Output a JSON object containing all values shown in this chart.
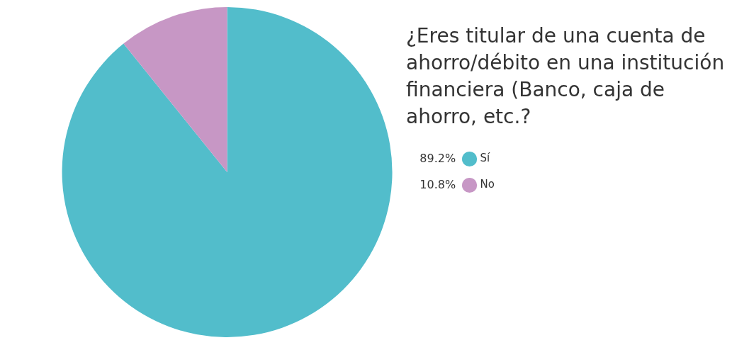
{
  "chart_data": {
    "type": "pie",
    "title": "¿Eres titular de una cuenta de ahorro/débito en una institución financiera (Banco, caja de ahorro, etc.?",
    "categories": [
      "Sí",
      "No"
    ],
    "values": [
      89.2,
      10.8
    ],
    "colors": [
      "#52bdcb",
      "#c797c5"
    ],
    "value_labels": [
      "89.2%",
      "10.8%"
    ],
    "legend": "right"
  }
}
